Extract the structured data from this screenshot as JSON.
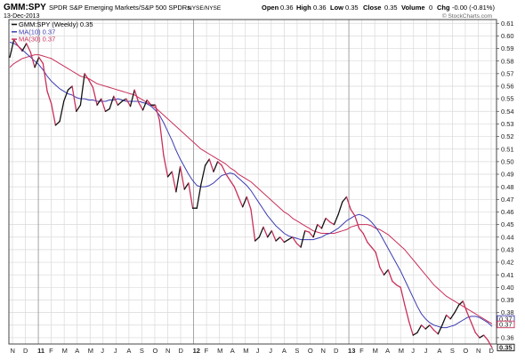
{
  "header": {
    "symbol": "GMM:SPY",
    "description": "SPDR S&P Emerging Markets/S&P 500 SPDRs",
    "exchange": "NYSE/NYSE",
    "date": "13-Dec-2013",
    "quote": {
      "open_label": "Open",
      "open": "0.36",
      "high_label": "High",
      "high": "0.36",
      "low_label": "Low",
      "low": "0.35",
      "close_label": "Close",
      "close": "0.35",
      "volume_label": "Volume",
      "volume": "0",
      "chg_label": "Chg",
      "chg": "-0.00 (-0.81%)"
    },
    "watermark": "© StockCharts.com"
  },
  "colors": {
    "price": "#111111",
    "ma10": "#3b3bb3",
    "ma30": "#c8305a",
    "grid": "#d9d9d9",
    "border": "#444444",
    "down_segment": "#c8305a"
  },
  "legend": [
    {
      "label": "GMM:SPY (Weekly) 0.35",
      "color": "#111111"
    },
    {
      "label": "MA(10) 0.37",
      "color": "#3b3bb3"
    },
    {
      "label": "MA(30) 0.37",
      "color": "#c8305a"
    }
  ],
  "chart_data": {
    "type": "line",
    "y_ticks": [
      "0.61",
      "0.60",
      "0.59",
      "0.58",
      "0.57",
      "0.56",
      "0.55",
      "0.54",
      "0.53",
      "0.52",
      "0.51",
      "0.50",
      "0.49",
      "0.48",
      "0.47",
      "0.46",
      "0.45",
      "0.44",
      "0.43",
      "0.42",
      "0.41",
      "0.40",
      "0.39",
      "0.38",
      "0.37",
      "0.36"
    ],
    "ylim": [
      0.355,
      0.613
    ],
    "x_ticks": [
      "N",
      "D",
      "11",
      "F",
      "M",
      "A",
      "M",
      "J",
      "J",
      "A",
      "S",
      "O",
      "N",
      "D",
      "12",
      "F",
      "M",
      "A",
      "M",
      "J",
      "J",
      "A",
      "S",
      "O",
      "N",
      "D",
      "13",
      "F",
      "M",
      "A",
      "M",
      "J",
      "J",
      "A",
      "S",
      "O",
      "N",
      "D"
    ],
    "x_ticks_bold": [
      "11",
      "12",
      "13"
    ],
    "value_badges": [
      {
        "text": "0.37",
        "value": 0.372
      },
      {
        "text": "0.37",
        "value": 0.369
      },
      {
        "text": "0.35",
        "value": 0.352
      }
    ],
    "series": [
      {
        "key": "price",
        "values": [
          0.583,
          0.597,
          0.592,
          0.588,
          0.594,
          0.587,
          0.575,
          0.583,
          0.578,
          0.556,
          0.546,
          0.529,
          0.532,
          0.548,
          0.557,
          0.56,
          0.54,
          0.545,
          0.57,
          0.565,
          0.559,
          0.545,
          0.55,
          0.54,
          0.542,
          0.552,
          0.545,
          0.548,
          0.55,
          0.544,
          0.557,
          0.547,
          0.541,
          0.549,
          0.545,
          0.545,
          0.533,
          0.505,
          0.488,
          0.492,
          0.476,
          0.496,
          0.478,
          0.483,
          0.463,
          0.463,
          0.482,
          0.497,
          0.502,
          0.492,
          0.5,
          0.497,
          0.49,
          0.485,
          0.48,
          0.472,
          0.464,
          0.472,
          0.462,
          0.437,
          0.44,
          0.448,
          0.44,
          0.445,
          0.437,
          0.44,
          0.436,
          0.438,
          0.44,
          0.435,
          0.432,
          0.445,
          0.444,
          0.44,
          0.45,
          0.447,
          0.455,
          0.452,
          0.45,
          0.458,
          0.468,
          0.472,
          0.462,
          0.457,
          0.447,
          0.443,
          0.436,
          0.432,
          0.428,
          0.416,
          0.41,
          0.414,
          0.405,
          0.402,
          0.4,
          0.386,
          0.373,
          0.362,
          0.364,
          0.37,
          0.367,
          0.37,
          0.366,
          0.363,
          0.37,
          0.378,
          0.375,
          0.38,
          0.386,
          0.389,
          0.38,
          0.372,
          0.364,
          0.36,
          0.362,
          0.358,
          0.352
        ]
      },
      {
        "key": "ma10",
        "values": [
          0.595,
          0.594,
          0.592,
          0.589,
          0.586,
          0.583,
          0.58,
          0.577,
          0.573,
          0.568,
          0.564,
          0.561,
          0.558,
          0.556,
          0.554,
          0.553,
          0.551,
          0.55,
          0.55,
          0.549,
          0.549,
          0.548,
          0.548,
          0.548,
          0.549,
          0.549,
          0.55,
          0.549,
          0.548,
          0.548,
          0.548,
          0.548,
          0.547,
          0.546,
          0.544,
          0.541,
          0.537,
          0.531,
          0.524,
          0.517,
          0.509,
          0.502,
          0.496,
          0.49,
          0.485,
          0.481,
          0.48,
          0.48,
          0.481,
          0.483,
          0.486,
          0.489,
          0.49,
          0.491,
          0.49,
          0.487,
          0.484,
          0.481,
          0.477,
          0.472,
          0.467,
          0.462,
          0.457,
          0.453,
          0.449,
          0.446,
          0.443,
          0.441,
          0.44,
          0.439,
          0.438,
          0.438,
          0.438,
          0.438,
          0.439,
          0.44,
          0.442,
          0.443,
          0.445,
          0.447,
          0.45,
          0.453,
          0.455,
          0.457,
          0.458,
          0.457,
          0.455,
          0.452,
          0.448,
          0.443,
          0.437,
          0.431,
          0.425,
          0.419,
          0.413,
          0.406,
          0.399,
          0.392,
          0.385,
          0.379,
          0.375,
          0.372,
          0.37,
          0.369,
          0.368,
          0.368,
          0.369,
          0.37,
          0.372,
          0.374,
          0.376,
          0.377,
          0.377,
          0.376,
          0.374,
          0.372,
          0.369
        ]
      },
      {
        "key": "ma30",
        "values": [
          0.575,
          0.578,
          0.58,
          0.582,
          0.583,
          0.584,
          0.585,
          0.585,
          0.584,
          0.583,
          0.582,
          0.58,
          0.578,
          0.576,
          0.574,
          0.572,
          0.57,
          0.568,
          0.567,
          0.566,
          0.564,
          0.562,
          0.561,
          0.56,
          0.559,
          0.558,
          0.557,
          0.556,
          0.555,
          0.554,
          0.553,
          0.551,
          0.549,
          0.547,
          0.545,
          0.543,
          0.54,
          0.537,
          0.534,
          0.531,
          0.528,
          0.525,
          0.522,
          0.519,
          0.516,
          0.513,
          0.51,
          0.508,
          0.506,
          0.504,
          0.502,
          0.5,
          0.498,
          0.495,
          0.493,
          0.49,
          0.488,
          0.486,
          0.484,
          0.481,
          0.478,
          0.475,
          0.472,
          0.469,
          0.466,
          0.463,
          0.46,
          0.458,
          0.455,
          0.453,
          0.451,
          0.449,
          0.447,
          0.445,
          0.444,
          0.443,
          0.443,
          0.443,
          0.443,
          0.444,
          0.445,
          0.446,
          0.448,
          0.449,
          0.45,
          0.45,
          0.45,
          0.449,
          0.447,
          0.446,
          0.444,
          0.442,
          0.439,
          0.436,
          0.433,
          0.43,
          0.426,
          0.422,
          0.418,
          0.414,
          0.41,
          0.406,
          0.402,
          0.399,
          0.396,
          0.393,
          0.391,
          0.389,
          0.387,
          0.385,
          0.383,
          0.381,
          0.379,
          0.377,
          0.375,
          0.373,
          0.371
        ]
      }
    ]
  }
}
